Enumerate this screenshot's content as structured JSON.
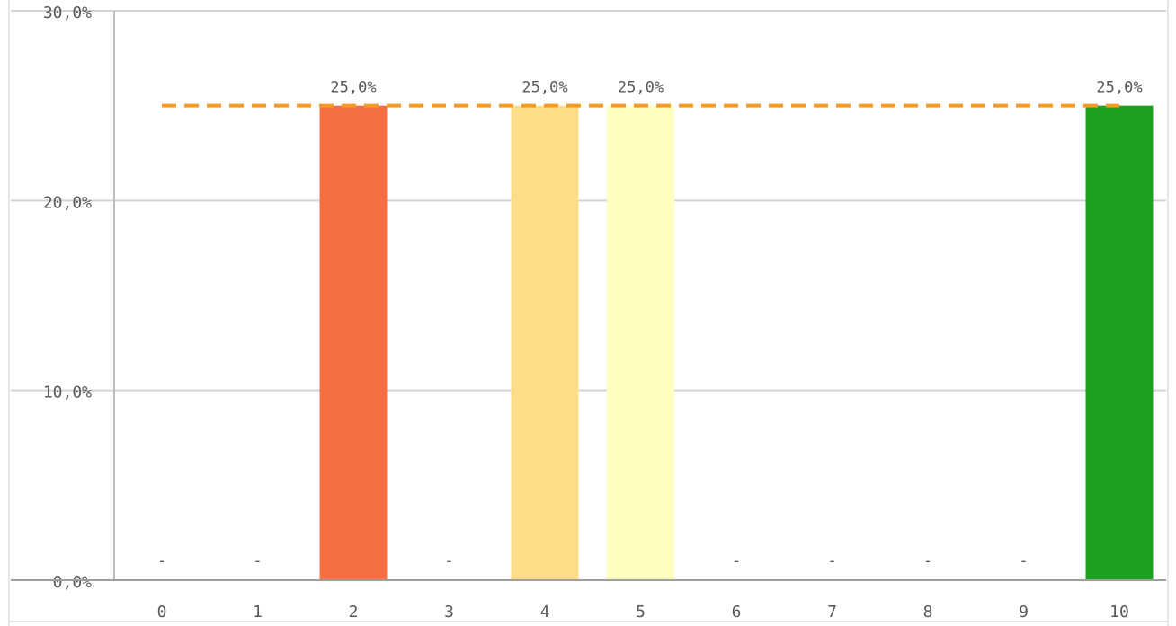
{
  "chart_data": {
    "type": "bar",
    "categories": [
      "0",
      "1",
      "2",
      "3",
      "4",
      "5",
      "6",
      "7",
      "8",
      "9",
      "10"
    ],
    "values": [
      0,
      0,
      25,
      0,
      25,
      25,
      0,
      0,
      0,
      0,
      25
    ],
    "data_labels": [
      "-",
      "-",
      "25,0%",
      "-",
      "25,0%",
      "25,0%",
      "-",
      "-",
      "-",
      "-",
      "25,0%"
    ],
    "bar_colors": [
      "#f56f44",
      "#f56f44",
      "#f56f44",
      "#fddd88",
      "#fddd88",
      "#ffffbf",
      "#1ea120",
      "#1ea120",
      "#1ea120",
      "#1ea120",
      "#1ea120"
    ],
    "reference_line": {
      "value": 25,
      "color": "#f59b24",
      "style": "dashed"
    },
    "y_ticks": [
      "0,0%",
      "10,0%",
      "20,0%",
      "30,0%"
    ],
    "y_tick_values": [
      0,
      10,
      20,
      30
    ],
    "ylim": [
      0,
      30
    ],
    "y_unit": "percent",
    "title": "",
    "xlabel": "",
    "ylabel": "",
    "grid": true,
    "colors": {
      "grid": "#d3d3d3",
      "axis": "#9e9e9e",
      "text": "#595959"
    }
  }
}
